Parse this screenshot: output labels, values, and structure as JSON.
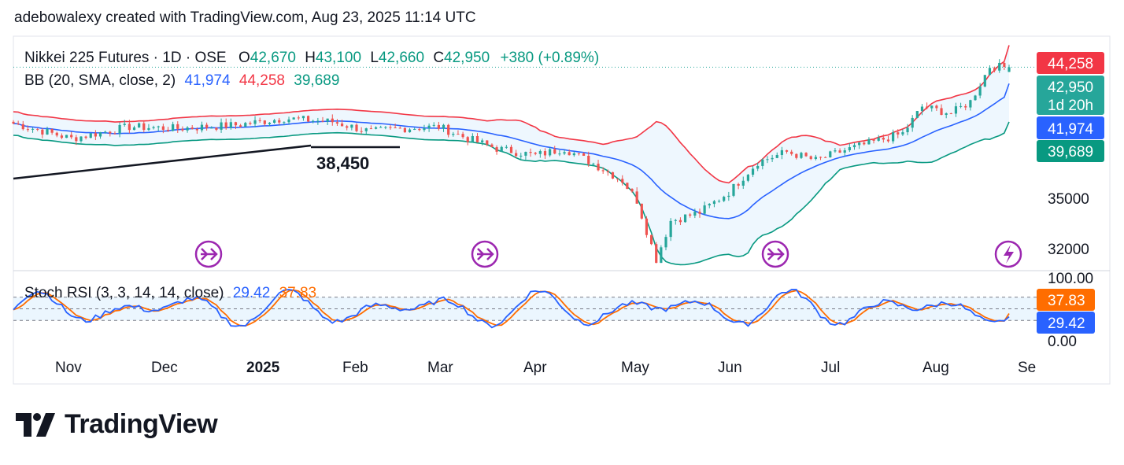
{
  "header": {
    "attribution": "adebowalexy created with TradingView.com, Aug 23, 2025 11:14 UTC"
  },
  "legend": {
    "symbol": "Nikkei 225 Futures · 1D · OSE",
    "o_label": "O",
    "o_value": "42,670",
    "h_label": "H",
    "h_value": "43,100",
    "l_label": "L",
    "l_value": "42,660",
    "c_label": "C",
    "c_value": "42,950",
    "change": "+380 (+0.89%)",
    "bb_label": "BB (20, SMA, close, 2)",
    "bb_basis": "41,974",
    "bb_upper": "44,258",
    "bb_lower": "39,689",
    "stoch_label": "Stoch RSI (3, 3, 14, 14, close)",
    "stoch_k": "29.42",
    "stoch_d": "37.83"
  },
  "annotation": {
    "support_label": "38,450"
  },
  "price_tags": {
    "upper": "44,258",
    "last": "42,950",
    "countdown": "1d 20h",
    "basis": "41,974",
    "lower": "39,689",
    "stoch_d": "37.83",
    "stoch_k": "29.42"
  },
  "brand": {
    "name": "TradingView"
  },
  "colors": {
    "up": "#26a69a",
    "down": "#ef5350",
    "basis": "#2962ff",
    "upper": "#f23645",
    "lower": "#089981",
    "stoch_k": "#2962ff",
    "stoch_d": "#ff6d00",
    "event": "#9c27b0",
    "band_fill": "#e3f2fd"
  },
  "chart_data": {
    "type": "candlestick",
    "title": "Nikkei 225 Futures · 1D · OSE",
    "x_axis_ticks": [
      "Nov",
      "Dec",
      "2025",
      "Feb",
      "Mar",
      "Apr",
      "May",
      "Jun",
      "Jul",
      "Aug",
      "Se"
    ],
    "y_axis_ticks": [
      35000,
      32000
    ],
    "ylim": [
      30500,
      45500
    ],
    "stoch_axis_ticks": [
      "100.00",
      "0.00"
    ],
    "events": [
      "dividend",
      "dividend",
      "dividend",
      "split"
    ],
    "ohlc_monthly_approx": [
      {
        "month": "Nov",
        "open": 39500,
        "high": 40400,
        "low": 38600,
        "close": 38300
      },
      {
        "month": "Dec",
        "open": 38300,
        "high": 40300,
        "low": 38000,
        "close": 39900
      },
      {
        "month": "Jan",
        "open": 39900,
        "high": 40300,
        "low": 38200,
        "close": 39600
      },
      {
        "month": "Feb",
        "open": 39600,
        "high": 39900,
        "low": 37500,
        "close": 37200
      },
      {
        "month": "Mar",
        "open": 37200,
        "high": 38300,
        "low": 35600,
        "close": 35700
      },
      {
        "month": "Apr",
        "open": 35700,
        "high": 36200,
        "low": 30800,
        "close": 35800
      },
      {
        "month": "May",
        "open": 35800,
        "high": 38500,
        "low": 35000,
        "close": 38000
      },
      {
        "month": "Jun",
        "open": 38000,
        "high": 40200,
        "low": 37300,
        "close": 40500
      },
      {
        "month": "Jul",
        "open": 40500,
        "high": 41800,
        "low": 39200,
        "close": 41000
      },
      {
        "month": "Aug",
        "open": 41000,
        "high": 43600,
        "low": 40200,
        "close": 42950
      }
    ],
    "series": [
      {
        "name": "BB basis",
        "last": 41974
      },
      {
        "name": "BB upper",
        "last": 44258
      },
      {
        "name": "BB lower",
        "last": 39689
      },
      {
        "name": "Stoch RSI K",
        "last": 29.42
      },
      {
        "name": "Stoch RSI D",
        "last": 37.83
      }
    ],
    "last": {
      "open": 42670,
      "high": 43100,
      "low": 42660,
      "close": 42950,
      "change": 380,
      "change_pct": 0.89
    },
    "support_level": 38450
  }
}
